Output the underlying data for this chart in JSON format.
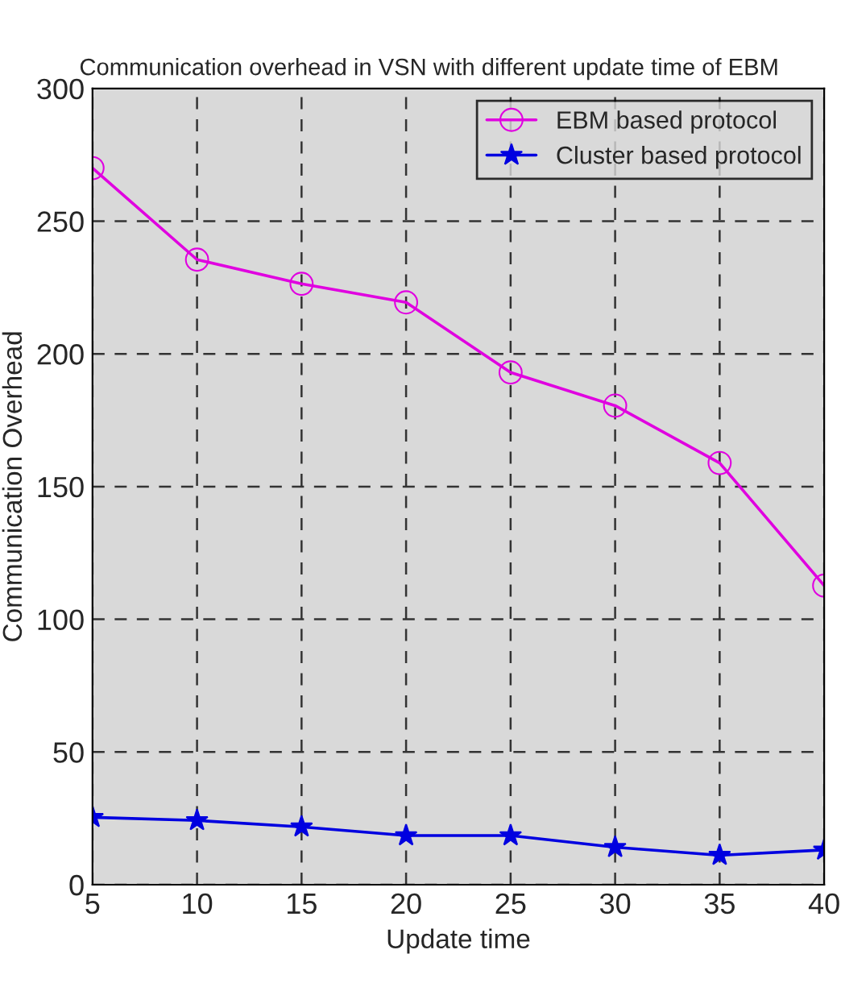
{
  "chart_data": {
    "type": "line",
    "title": "Communication overhead in VSN with different update time of EBM",
    "xlabel": "Update time",
    "ylabel": "Communication Overhead",
    "x": [
      5,
      10,
      15,
      20,
      25,
      30,
      35,
      40
    ],
    "series": [
      {
        "name": "EBM based protocol",
        "color": "#e000e0",
        "marker": "circle",
        "values": [
          270,
          235.5,
          226.4,
          219.4,
          193,
          180.5,
          158.9,
          112.7
        ]
      },
      {
        "name": "Cluster based protocol",
        "color": "#0000e0",
        "marker": "star",
        "values": [
          25.4,
          24.2,
          21.8,
          18.5,
          18.5,
          14.1,
          11.1,
          13.1
        ]
      }
    ],
    "xlim": [
      5,
      40
    ],
    "xticks": [
      5,
      10,
      15,
      20,
      25,
      30,
      35,
      40
    ],
    "ylim": [
      0,
      300
    ],
    "yticks": [
      0,
      50,
      100,
      150,
      200,
      250,
      300
    ],
    "grid": true,
    "legend": "top right",
    "line_style": "solid"
  }
}
